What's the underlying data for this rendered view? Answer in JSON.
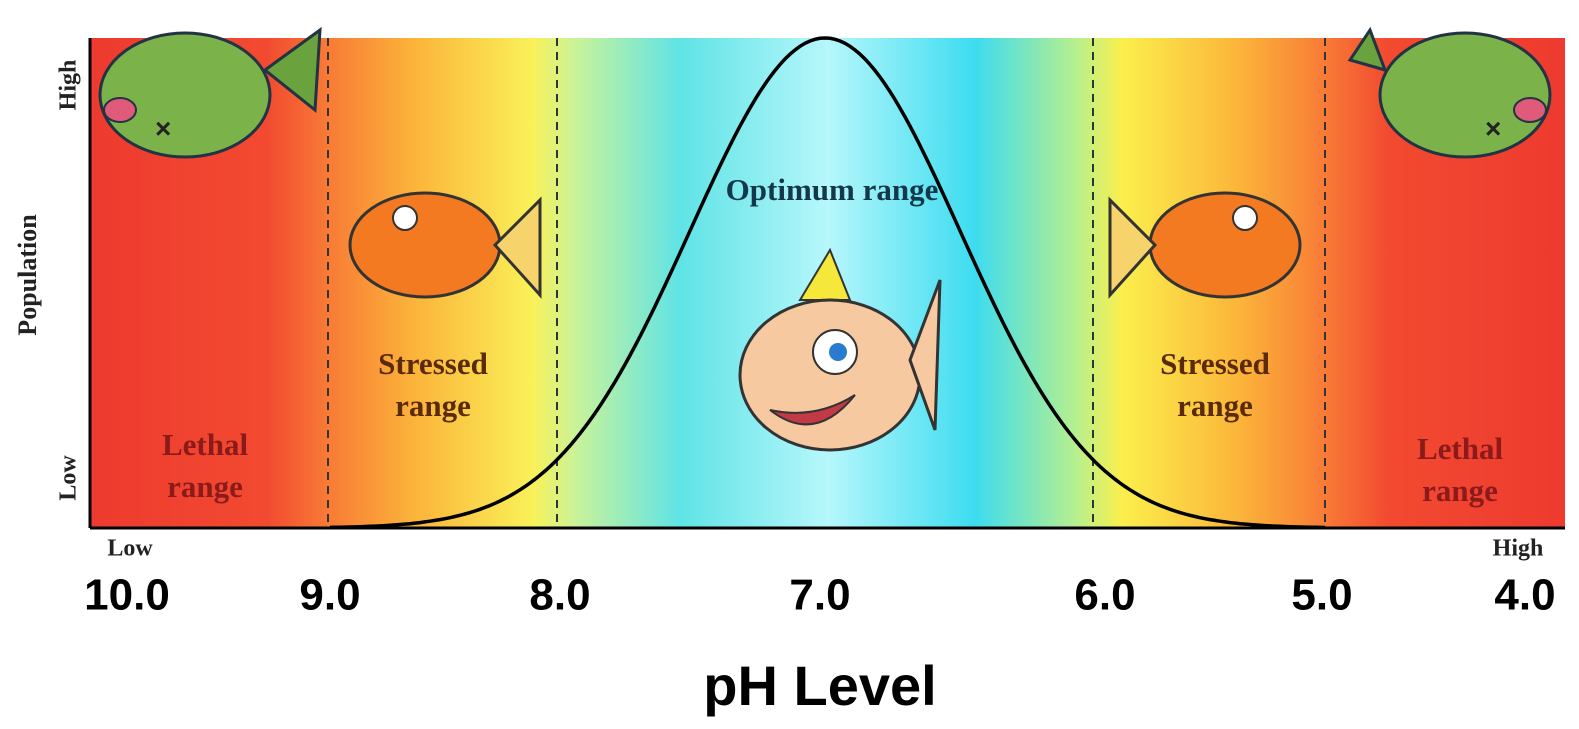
{
  "y_axis": {
    "title": "Population",
    "top": "High",
    "bottom": "Low"
  },
  "x_axis": {
    "left": "Low",
    "right": "High",
    "title": "pH Level",
    "ticks": [
      "10.0",
      "9.0",
      "8.0",
      "7.0",
      "6.0",
      "5.0",
      "4.0"
    ]
  },
  "zones": [
    {
      "lines": [
        "Lethal",
        "range"
      ]
    },
    {
      "lines": [
        "Stressed",
        "range"
      ]
    },
    {
      "lines": [
        "Optimum range"
      ]
    },
    {
      "lines": [
        "Stressed",
        "range"
      ]
    },
    {
      "lines": [
        "Lethal",
        "range"
      ]
    }
  ]
}
